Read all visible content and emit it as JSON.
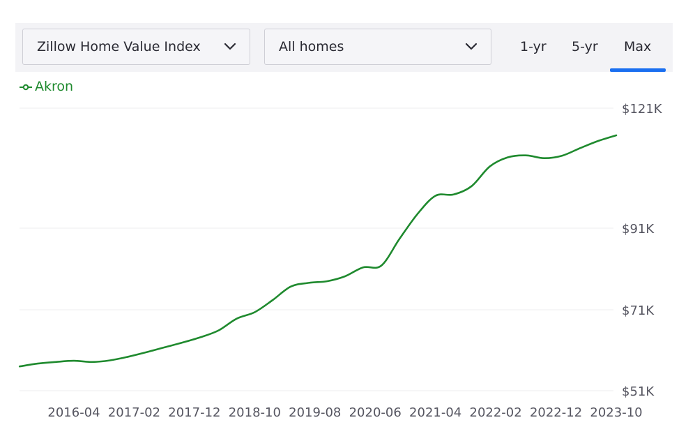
{
  "controls": {
    "metric_select": "Zillow Home Value Index",
    "home_type_select": "All homes",
    "ranges": [
      "1-yr",
      "5-yr",
      "Max"
    ],
    "active_range": "Max"
  },
  "colors": {
    "series": "#1f8a2e",
    "active_tab_underline": "#1a6ff0",
    "grid": "#ececef"
  },
  "chart_data": {
    "type": "line",
    "title": "",
    "xlabel": "",
    "ylabel": "",
    "legend": {
      "placement": "top-left",
      "entries": [
        "Akron"
      ]
    },
    "grid": "horizontal",
    "y_ticks": [
      {
        "value": 121000,
        "label": "$121K"
      },
      {
        "value": 91000,
        "label": "$91K"
      },
      {
        "value": 71000,
        "label": "$71K"
      },
      {
        "value": 51000,
        "label": "$51K"
      }
    ],
    "x_ticks": [
      "2016-04",
      "2017-02",
      "2017-12",
      "2018-10",
      "2019-08",
      "2020-06",
      "2021-04",
      "2022-02",
      "2022-12",
      "2023-10"
    ],
    "x_range": [
      "2015-07",
      "2023-10"
    ],
    "series": [
      {
        "name": "Akron",
        "x": [
          "2015-07",
          "2015-10",
          "2016-01",
          "2016-04",
          "2016-07",
          "2016-10",
          "2017-01",
          "2017-04",
          "2017-07",
          "2017-10",
          "2018-01",
          "2018-04",
          "2018-07",
          "2018-10",
          "2019-01",
          "2019-04",
          "2019-07",
          "2019-10",
          "2020-01",
          "2020-04",
          "2020-07",
          "2020-10",
          "2021-01",
          "2021-04",
          "2021-07",
          "2021-10",
          "2022-01",
          "2022-04",
          "2022-07",
          "2022-10",
          "2023-01",
          "2023-04",
          "2023-07",
          "2023-10"
        ],
        "values": [
          57000,
          57700,
          58100,
          58400,
          58100,
          58500,
          59400,
          60500,
          61700,
          62900,
          64200,
          65900,
          68800,
          70400,
          73400,
          76700,
          77600,
          78000,
          79200,
          81400,
          81800,
          88300,
          94500,
          99100,
          99400,
          101500,
          106400,
          108700,
          109200,
          108500,
          109100,
          111000,
          112800,
          114200
        ]
      }
    ]
  }
}
